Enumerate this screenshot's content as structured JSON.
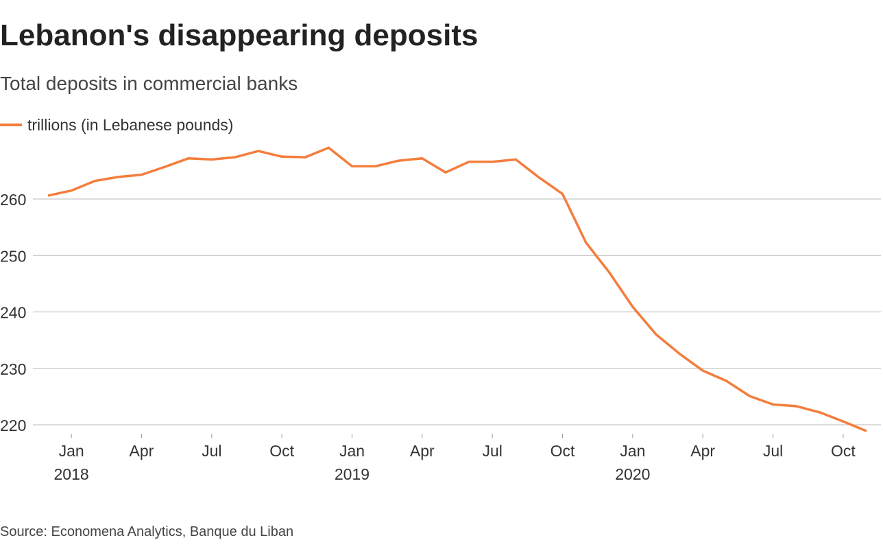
{
  "chart_data": {
    "type": "line",
    "title": "Lebanon's disappearing deposits",
    "subtitle": "Total deposits in commercial banks",
    "source": "Source: Economena Analytics, Banque du Liban",
    "x": [
      "2017-12",
      "2018-01",
      "2018-02",
      "2018-03",
      "2018-04",
      "2018-05",
      "2018-06",
      "2018-07",
      "2018-08",
      "2018-09",
      "2018-10",
      "2018-11",
      "2018-12",
      "2019-01",
      "2019-02",
      "2019-03",
      "2019-04",
      "2019-05",
      "2019-06",
      "2019-07",
      "2019-08",
      "2019-09",
      "2019-10",
      "2019-11",
      "2019-12",
      "2020-01",
      "2020-02",
      "2020-03",
      "2020-04",
      "2020-05",
      "2020-06",
      "2020-07",
      "2020-08",
      "2020-09",
      "2020-10",
      "2020-11"
    ],
    "series": [
      {
        "name": "trillions (in Lebanese pounds)",
        "color": "#f47d3c",
        "values": [
          260.6,
          261.5,
          263.2,
          263.9,
          264.3,
          265.7,
          267.2,
          267.0,
          267.4,
          268.5,
          267.5,
          267.4,
          269.1,
          265.8,
          265.8,
          266.8,
          267.2,
          264.7,
          266.6,
          266.6,
          267.0,
          263.8,
          260.9,
          252.3,
          247.0,
          240.9,
          236.0,
          232.6,
          229.6,
          227.8,
          225.1,
          223.6,
          223.3,
          222.2,
          220.6,
          218.9
        ]
      }
    ],
    "xticks": [
      {
        "value": "2018-01",
        "label": "Jan\n2018"
      },
      {
        "value": "2018-04",
        "label": "Apr"
      },
      {
        "value": "2018-07",
        "label": "Jul"
      },
      {
        "value": "2018-10",
        "label": "Oct"
      },
      {
        "value": "2019-01",
        "label": "Jan\n2019"
      },
      {
        "value": "2019-04",
        "label": "Apr"
      },
      {
        "value": "2019-07",
        "label": "Jul"
      },
      {
        "value": "2019-10",
        "label": "Oct"
      },
      {
        "value": "2020-01",
        "label": "Jan\n2020"
      },
      {
        "value": "2020-04",
        "label": "Apr"
      },
      {
        "value": "2020-07",
        "label": "Jul"
      },
      {
        "value": "2020-10",
        "label": "Oct"
      }
    ],
    "ylim": [
      217,
      272
    ],
    "yticks": [
      220,
      230,
      240,
      250,
      260
    ],
    "grid": true
  }
}
